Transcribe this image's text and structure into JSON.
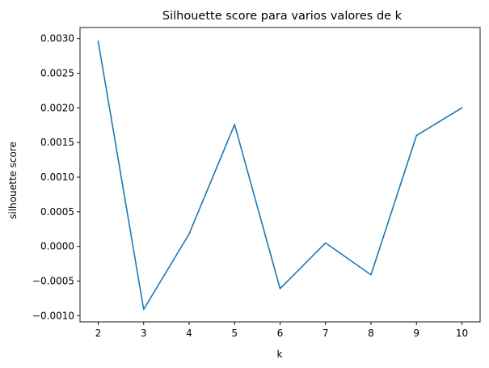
{
  "chart_data": {
    "type": "line",
    "title": "Silhouette score para varios valores de k",
    "xlabel": "k",
    "ylabel": "silhouette score",
    "x": [
      2,
      3,
      4,
      5,
      6,
      7,
      8,
      9,
      10
    ],
    "series": [
      {
        "values": [
          0.00296,
          -0.00091,
          0.00018,
          0.00176,
          -0.00061,
          5e-05,
          -0.00041,
          0.0016,
          0.002
        ],
        "color": "#1f77b4"
      }
    ],
    "xlim": [
      1.6,
      10.4
    ],
    "ylim": [
      -0.00109,
      0.00316
    ],
    "xticks": [
      "2",
      "3",
      "4",
      "5",
      "6",
      "7",
      "8",
      "9",
      "10"
    ],
    "yticks": [
      "−0.0010",
      "−0.0005",
      "0.0000",
      "0.0005",
      "0.0010",
      "0.0015",
      "0.0020",
      "0.0025",
      "0.0030"
    ],
    "ytick_values": [
      -0.001,
      -0.0005,
      0,
      0.0005,
      0.001,
      0.0015,
      0.002,
      0.0025,
      0.003
    ],
    "grid": false,
    "legend": false
  }
}
